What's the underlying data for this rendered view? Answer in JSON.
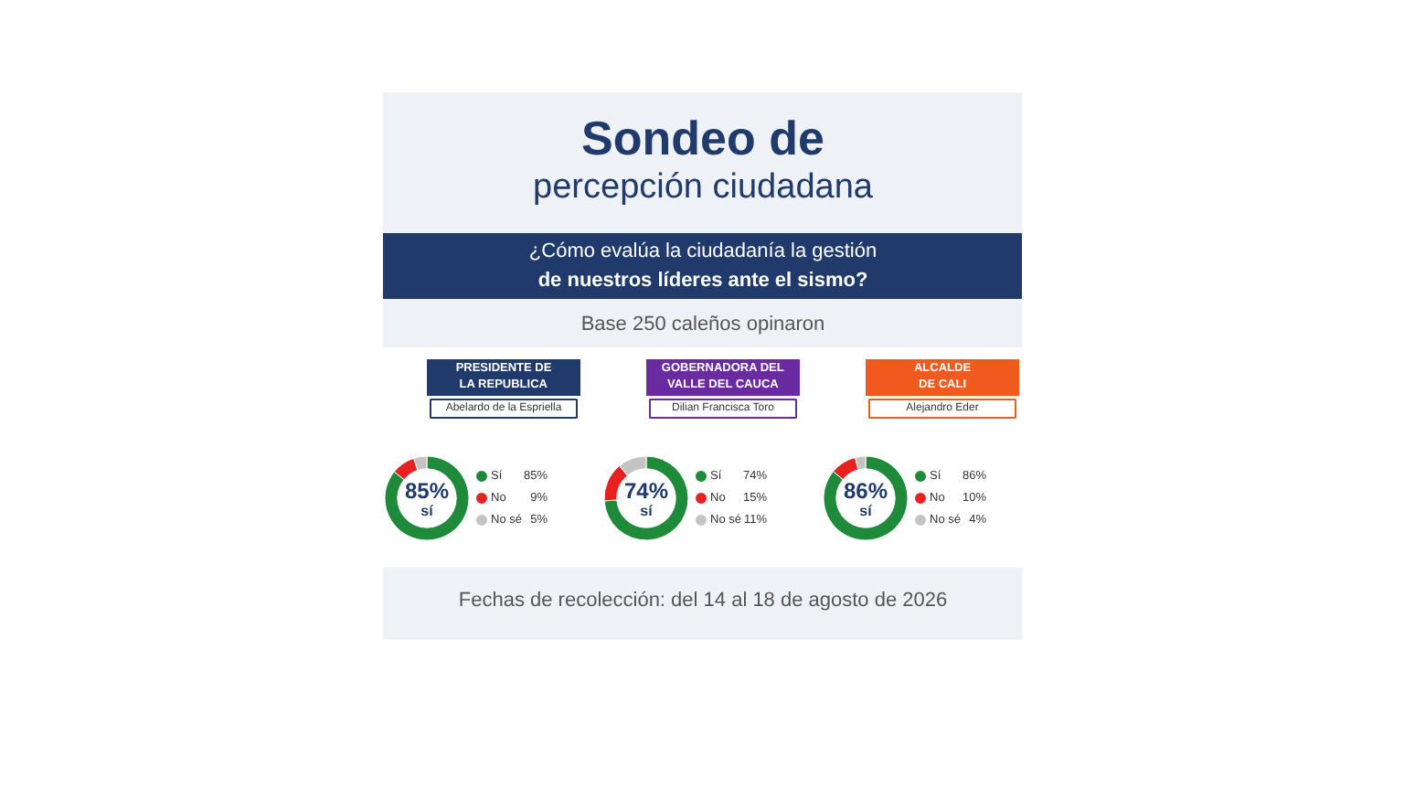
{
  "chart_data": [
    {
      "type": "other",
      "title": "Sondeo de percepción ciudadana",
      "subtitle": "¿Cómo evalúa la ciudadanía la gestión de nuestros líderes ante el sismo?",
      "annotations": [
        "Base 250 caleños opinaron",
        "Fechas de recolección: del 14 al 18 de agosto de 2026"
      ]
    },
    {
      "type": "donut",
      "title": "PRESIDENTE DE LA REPUBLICA",
      "subtitle": "Abelardo de la Espriella",
      "categories": [
        "Sí",
        "No",
        "No sé"
      ],
      "values": [
        85,
        9,
        5
      ],
      "value_labels": [
        "85%",
        "9%",
        "5%"
      ],
      "colors": [
        "#1e8a3a",
        "#e8201f",
        "#c4c4c4"
      ],
      "annotations": [
        "85% sí"
      ],
      "legend": "right"
    },
    {
      "type": "donut",
      "title": "GOBERNADORA DEL VALLE DEL CAUCA",
      "subtitle": "Dilian Francisca Toro",
      "categories": [
        "Sí",
        "No",
        "No sé"
      ],
      "values": [
        74,
        15,
        11
      ],
      "value_labels": [
        "74%",
        "15%",
        "11%"
      ],
      "colors": [
        "#1e8a3a",
        "#e8201f",
        "#c4c4c4"
      ],
      "annotations": [
        "74% sí"
      ],
      "legend": "right"
    },
    {
      "type": "donut",
      "title": "ALCALDE DE CALI",
      "subtitle": "Alejandro Eder",
      "categories": [
        "Sí",
        "No",
        "No sé"
      ],
      "values": [
        86,
        10,
        4
      ],
      "value_labels": [
        "86%",
        "10%",
        "4%"
      ],
      "colors": [
        "#1e8a3a",
        "#e8201f",
        "#c4c4c4"
      ],
      "annotations": [
        "86% sí"
      ],
      "legend": "right"
    }
  ]
}
